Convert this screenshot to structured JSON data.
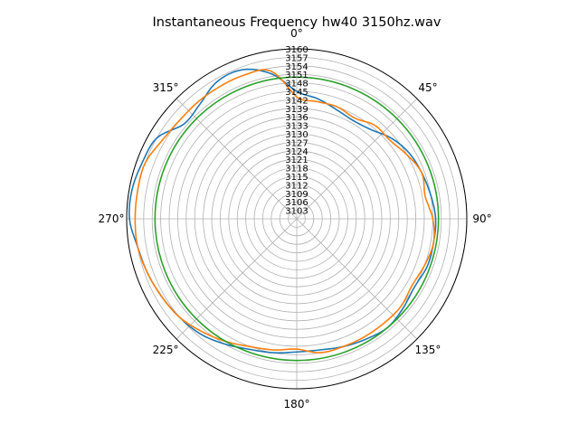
{
  "chart_data": {
    "type": "polar-line",
    "title": "Instantaneous Frequency  hw40 3150hz.wav",
    "theta_zero": "top",
    "theta_direction": "clockwise",
    "angle_ticks": [
      "0°",
      "45°",
      "90°",
      "135°",
      "180°",
      "225°",
      "270°",
      "315°"
    ],
    "angle_tick_values": [
      0,
      45,
      90,
      135,
      180,
      225,
      270,
      315
    ],
    "r_min": 3100,
    "r_max": 3160,
    "radial_ticks": [
      3103,
      3106,
      3109,
      3112,
      3115,
      3118,
      3121,
      3124,
      3127,
      3130,
      3133,
      3136,
      3139,
      3142,
      3145,
      3148,
      3151,
      3154,
      3157,
      3160
    ],
    "grid": true,
    "series": [
      {
        "color": "#1f77b4",
        "theta": [
          0,
          10,
          20,
          30,
          40,
          50,
          60,
          70,
          80,
          90,
          100,
          110,
          120,
          130,
          140,
          150,
          160,
          170,
          180,
          190,
          200,
          210,
          220,
          230,
          240,
          250,
          260,
          270,
          280,
          290,
          300,
          310,
          320,
          330,
          340,
          350,
          360
        ],
        "r": [
          3145,
          3143,
          3141,
          3140,
          3141,
          3144,
          3146,
          3147,
          3148,
          3149,
          3149,
          3149,
          3148,
          3149,
          3150,
          3149,
          3148,
          3147,
          3147,
          3148,
          3149,
          3151,
          3153,
          3154,
          3155,
          3156,
          3157,
          3159,
          3159,
          3158,
          3157,
          3152,
          3153,
          3156,
          3156,
          3152,
          3145
        ]
      },
      {
        "color": "#ff7f0e",
        "theta": [
          0,
          10,
          20,
          30,
          40,
          50,
          60,
          70,
          80,
          90,
          100,
          110,
          120,
          130,
          140,
          150,
          160,
          170,
          180,
          190,
          200,
          210,
          220,
          230,
          240,
          250,
          260,
          270,
          280,
          290,
          300,
          310,
          320,
          330,
          340,
          350,
          360
        ],
        "r": [
          3143,
          3142,
          3142,
          3141,
          3143,
          3143,
          3145,
          3147,
          3146,
          3148,
          3149,
          3148,
          3147,
          3148,
          3148,
          3148,
          3148,
          3148,
          3146,
          3147,
          3148,
          3150,
          3152,
          3154,
          3155,
          3156,
          3157,
          3157,
          3157,
          3157,
          3155,
          3154,
          3154,
          3154,
          3154,
          3153,
          3143
        ]
      },
      {
        "color": "#2ca02c",
        "theta": [
          0,
          360
        ],
        "r": [
          3150,
          3150
        ],
        "constant": true
      }
    ]
  }
}
